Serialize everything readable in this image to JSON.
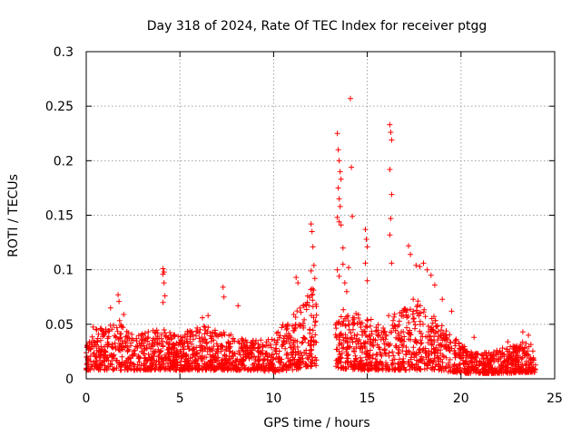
{
  "chart_data": {
    "type": "scatter",
    "title": "Day 318 of 2024, Rate Of TEC Index for receiver ptgg",
    "xlabel": "GPS time / hours",
    "ylabel": "ROTI / TECUs",
    "xlim": [
      0,
      25
    ],
    "ylim": [
      0,
      0.3
    ],
    "xticks": [
      0,
      5,
      10,
      15,
      20,
      25
    ],
    "xtick_labels": [
      "0",
      "5",
      "10",
      "15",
      "20",
      "25"
    ],
    "yticks": [
      0,
      0.05,
      0.1,
      0.15,
      0.2,
      0.25,
      0.3
    ],
    "ytick_labels": [
      "0",
      "0.05",
      "0.1",
      "0.15",
      "0.2",
      "0.25",
      "0.3"
    ],
    "grid": true,
    "marker": "+",
    "color": "#ff0000",
    "x_range": [
      0,
      24
    ],
    "gap": [
      12.3,
      13.3
    ],
    "seed": 31824,
    "n_points": 2600,
    "series": [
      {
        "name": "ROTI",
        "x": [
          4.1,
          4.1,
          4.15,
          4.2,
          4.1,
          4.15,
          7.3,
          7.35,
          8.1,
          1.7,
          1.75,
          1.3,
          2.0,
          6.2,
          6.5,
          12.0,
          12.05,
          12.1,
          12.15,
          12.2,
          12.0,
          11.2,
          11.3,
          13.4,
          13.45,
          13.5,
          13.55,
          13.6,
          13.45,
          13.5,
          13.55,
          13.4,
          13.5,
          13.6,
          13.7,
          13.7,
          13.4,
          13.5,
          13.8,
          14.1,
          14.15,
          14.2,
          14.0,
          13.9,
          14.9,
          14.95,
          15.0,
          14.9,
          15.0,
          16.2,
          16.25,
          16.3,
          16.2,
          16.3,
          16.25,
          16.2,
          16.3,
          17.2,
          17.3,
          17.6,
          17.8,
          18.0,
          18.2,
          18.4,
          18.6,
          19.0,
          19.5,
          20.7,
          22.5,
          23.3,
          23.6
        ],
        "y": [
          0.101,
          0.096,
          0.088,
          0.076,
          0.07,
          0.098,
          0.084,
          0.075,
          0.067,
          0.077,
          0.071,
          0.065,
          0.059,
          0.056,
          0.058,
          0.142,
          0.135,
          0.121,
          0.104,
          0.092,
          0.099,
          0.093,
          0.088,
          0.225,
          0.21,
          0.2,
          0.19,
          0.183,
          0.175,
          0.165,
          0.158,
          0.148,
          0.144,
          0.141,
          0.12,
          0.105,
          0.1,
          0.094,
          0.088,
          0.257,
          0.194,
          0.149,
          0.102,
          0.08,
          0.137,
          0.128,
          0.121,
          0.106,
          0.09,
          0.233,
          0.226,
          0.219,
          0.192,
          0.169,
          0.147,
          0.132,
          0.106,
          0.122,
          0.114,
          0.104,
          0.103,
          0.106,
          0.1,
          0.095,
          0.086,
          0.073,
          0.062,
          0.038,
          0.034,
          0.043,
          0.04
        ]
      }
    ],
    "bulk_envelope": [
      {
        "t": 0.0,
        "lo": 0.008,
        "hi": 0.03
      },
      {
        "t": 0.4,
        "lo": 0.008,
        "hi": 0.05
      },
      {
        "t": 1.0,
        "lo": 0.008,
        "hi": 0.045
      },
      {
        "t": 1.7,
        "lo": 0.008,
        "hi": 0.055
      },
      {
        "t": 2.5,
        "lo": 0.008,
        "hi": 0.04
      },
      {
        "t": 3.5,
        "lo": 0.008,
        "hi": 0.045
      },
      {
        "t": 4.2,
        "lo": 0.008,
        "hi": 0.045
      },
      {
        "t": 5.0,
        "lo": 0.008,
        "hi": 0.04
      },
      {
        "t": 6.0,
        "lo": 0.008,
        "hi": 0.05
      },
      {
        "t": 7.0,
        "lo": 0.008,
        "hi": 0.045
      },
      {
        "t": 8.0,
        "lo": 0.008,
        "hi": 0.04
      },
      {
        "t": 9.0,
        "lo": 0.008,
        "hi": 0.035
      },
      {
        "t": 10.0,
        "lo": 0.006,
        "hi": 0.04
      },
      {
        "t": 11.0,
        "lo": 0.008,
        "hi": 0.06
      },
      {
        "t": 11.6,
        "lo": 0.01,
        "hi": 0.075
      },
      {
        "t": 12.2,
        "lo": 0.012,
        "hi": 0.09
      },
      {
        "t": 13.4,
        "lo": 0.01,
        "hi": 0.065
      },
      {
        "t": 14.5,
        "lo": 0.008,
        "hi": 0.06
      },
      {
        "t": 15.5,
        "lo": 0.008,
        "hi": 0.055
      },
      {
        "t": 16.5,
        "lo": 0.008,
        "hi": 0.06
      },
      {
        "t": 17.5,
        "lo": 0.008,
        "hi": 0.075
      },
      {
        "t": 18.5,
        "lo": 0.008,
        "hi": 0.06
      },
      {
        "t": 19.5,
        "lo": 0.006,
        "hi": 0.04
      },
      {
        "t": 20.5,
        "lo": 0.005,
        "hi": 0.025
      },
      {
        "t": 21.5,
        "lo": 0.005,
        "hi": 0.025
      },
      {
        "t": 22.5,
        "lo": 0.005,
        "hi": 0.03
      },
      {
        "t": 23.5,
        "lo": 0.006,
        "hi": 0.035
      },
      {
        "t": 24.0,
        "lo": 0.006,
        "hi": 0.03
      }
    ]
  }
}
